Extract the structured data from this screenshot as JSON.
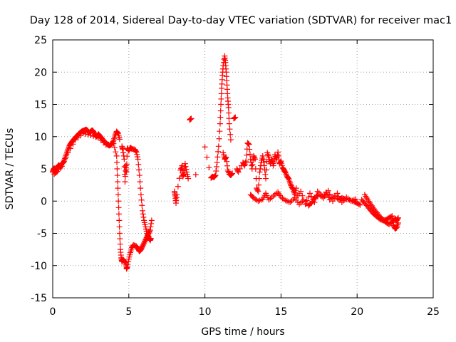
{
  "chart_data": {
    "type": "scatter",
    "title": "Day 128 of 2014, Sidereal Day-to-day VTEC variation (SDTVAR) for receiver mac1",
    "xlabel": "GPS time / hours",
    "ylabel": "SDTVAR / TECUs",
    "xlim": [
      0,
      25
    ],
    "ylim": [
      -15,
      25
    ],
    "xticks": [
      0,
      5,
      10,
      15,
      20,
      25
    ],
    "yticks": [
      -15,
      -10,
      -5,
      0,
      5,
      10,
      15,
      20,
      25
    ],
    "grid": true,
    "marker": "+",
    "color": "#ff0000",
    "series": [
      {
        "name": "SDTVAR",
        "points": [
          [
            0.0,
            4.5
          ],
          [
            0.05,
            4.9
          ],
          [
            0.1,
            5.1
          ],
          [
            0.2,
            4.7
          ],
          [
            0.3,
            5.3
          ],
          [
            0.4,
            5.6
          ],
          [
            0.5,
            5.2
          ],
          [
            0.6,
            5.8
          ],
          [
            0.7,
            6.0
          ],
          [
            0.8,
            6.6
          ],
          [
            0.9,
            7.3
          ],
          [
            1.0,
            8.0
          ],
          [
            1.1,
            8.6
          ],
          [
            1.2,
            9.0
          ],
          [
            1.3,
            9.3
          ],
          [
            1.4,
            9.6
          ],
          [
            1.5,
            9.9
          ],
          [
            1.6,
            10.1
          ],
          [
            1.7,
            10.4
          ],
          [
            1.8,
            10.6
          ],
          [
            1.9,
            10.8
          ],
          [
            2.0,
            10.9
          ],
          [
            2.1,
            11.0
          ],
          [
            2.2,
            11.1
          ],
          [
            2.3,
            10.9
          ],
          [
            2.4,
            10.6
          ],
          [
            2.5,
            10.8
          ],
          [
            2.6,
            11.0
          ],
          [
            2.7,
            10.7
          ],
          [
            2.8,
            10.2
          ],
          [
            2.9,
            10.0
          ],
          [
            3.0,
            10.4
          ],
          [
            3.1,
            10.1
          ],
          [
            3.2,
            9.8
          ],
          [
            3.3,
            9.5
          ],
          [
            3.4,
            9.2
          ],
          [
            3.5,
            9.0
          ],
          [
            3.6,
            8.8
          ],
          [
            3.7,
            8.6
          ],
          [
            3.8,
            8.7
          ],
          [
            3.9,
            8.9
          ],
          [
            4.0,
            9.4
          ],
          [
            4.1,
            10.2
          ],
          [
            4.2,
            10.8
          ],
          [
            4.3,
            10.5
          ],
          [
            4.4,
            9.6
          ],
          [
            0.1,
            4.2
          ],
          [
            0.3,
            4.6
          ],
          [
            0.6,
            5.4
          ],
          [
            1.0,
            7.5
          ],
          [
            1.5,
            9.5
          ],
          [
            2.0,
            10.5
          ],
          [
            2.5,
            10.2
          ],
          [
            3.0,
            9.8
          ],
          [
            3.5,
            8.7
          ],
          [
            4.0,
            8.9
          ],
          [
            4.2,
            7.0
          ],
          [
            4.25,
            4.0
          ],
          [
            4.3,
            1.0
          ],
          [
            4.35,
            -2.0
          ],
          [
            4.4,
            -5.0
          ],
          [
            4.45,
            -7.5
          ],
          [
            4.5,
            -8.8
          ],
          [
            4.55,
            -9.4
          ],
          [
            4.6,
            -9.0
          ],
          [
            4.7,
            -9.3
          ],
          [
            4.8,
            -9.6
          ],
          [
            4.85,
            -10.5
          ],
          [
            4.9,
            -10.2
          ],
          [
            5.0,
            -9.0
          ],
          [
            5.1,
            -8.0
          ],
          [
            5.2,
            -7.2
          ],
          [
            5.3,
            -6.8
          ],
          [
            5.5,
            -7.0
          ],
          [
            5.6,
            -7.4
          ],
          [
            5.7,
            -7.8
          ],
          [
            5.8,
            -7.5
          ],
          [
            5.9,
            -7.0
          ],
          [
            6.0,
            -6.5
          ],
          [
            6.1,
            -6.0
          ],
          [
            6.2,
            -5.5
          ],
          [
            6.3,
            -5.0
          ],
          [
            6.4,
            -4.5
          ],
          [
            6.5,
            -3.0
          ],
          [
            4.55,
            8.5
          ],
          [
            4.6,
            8.0
          ],
          [
            4.7,
            6.5
          ],
          [
            4.75,
            3.0
          ],
          [
            4.8,
            5.5
          ],
          [
            4.85,
            4.5
          ],
          [
            4.9,
            8.2
          ],
          [
            5.0,
            7.8
          ],
          [
            5.1,
            8.3
          ],
          [
            5.2,
            8.1
          ],
          [
            5.4,
            8.0
          ],
          [
            5.5,
            7.6
          ],
          [
            5.6,
            6.5
          ],
          [
            5.7,
            4.0
          ],
          [
            5.8,
            1.0
          ],
          [
            5.9,
            -1.5
          ],
          [
            6.0,
            -3.0
          ],
          [
            6.1,
            -4.0
          ],
          [
            6.2,
            -5.0
          ],
          [
            6.3,
            -5.6
          ],
          [
            6.4,
            -6.1
          ],
          [
            6.45,
            -5.8
          ],
          [
            8.0,
            1.5
          ],
          [
            8.05,
            0.8
          ],
          [
            8.1,
            -0.3
          ],
          [
            8.15,
            1.0
          ],
          [
            8.4,
            4.8
          ],
          [
            8.5,
            5.5
          ],
          [
            8.55,
            3.8
          ],
          [
            8.6,
            4.2
          ],
          [
            8.7,
            5.8
          ],
          [
            8.8,
            4.5
          ],
          [
            8.9,
            3.5
          ],
          [
            9.0,
            12.6
          ],
          [
            9.1,
            12.8
          ],
          [
            9.4,
            4.1
          ],
          [
            10.0,
            8.4
          ],
          [
            10.4,
            3.6
          ],
          [
            10.5,
            3.8
          ],
          [
            10.6,
            3.7
          ],
          [
            10.7,
            4.0
          ],
          [
            10.8,
            6.0
          ],
          [
            10.9,
            8.5
          ],
          [
            11.0,
            12.0
          ],
          [
            11.05,
            15.0
          ],
          [
            11.1,
            17.5
          ],
          [
            11.15,
            19.5
          ],
          [
            11.2,
            21.0
          ],
          [
            11.3,
            22.5
          ],
          [
            11.35,
            21.5
          ],
          [
            11.4,
            20.0
          ],
          [
            11.45,
            18.0
          ],
          [
            11.5,
            16.0
          ],
          [
            11.55,
            14.5
          ],
          [
            11.6,
            12.0
          ],
          [
            11.7,
            9.5
          ],
          [
            11.2,
            7.5
          ],
          [
            11.3,
            6.5
          ],
          [
            11.4,
            6.8
          ],
          [
            11.5,
            4.8
          ],
          [
            11.6,
            4.2
          ],
          [
            11.7,
            4.0
          ],
          [
            11.8,
            4.3
          ],
          [
            11.9,
            12.8
          ],
          [
            12.0,
            13.0
          ],
          [
            12.1,
            5.0
          ],
          [
            12.2,
            4.5
          ],
          [
            12.5,
            6.0
          ],
          [
            12.6,
            5.5
          ],
          [
            12.7,
            6.2
          ],
          [
            12.8,
            9.0
          ],
          [
            12.9,
            8.8
          ],
          [
            13.0,
            6.5
          ],
          [
            13.1,
            5.0
          ],
          [
            13.2,
            7.0
          ],
          [
            13.3,
            6.5
          ],
          [
            13.4,
            2.0
          ],
          [
            13.5,
            1.5
          ],
          [
            13.6,
            4.5
          ],
          [
            13.7,
            6.0
          ],
          [
            13.8,
            7.0
          ],
          [
            13.9,
            5.5
          ],
          [
            14.0,
            3.5
          ],
          [
            14.1,
            7.5
          ],
          [
            14.2,
            6.8
          ],
          [
            14.3,
            5.8
          ],
          [
            14.4,
            6.5
          ],
          [
            14.5,
            5.5
          ],
          [
            14.6,
            7.2
          ],
          [
            14.7,
            6.4
          ],
          [
            14.8,
            7.6
          ],
          [
            14.9,
            5.8
          ],
          [
            15.0,
            6.2
          ],
          [
            15.1,
            5.2
          ],
          [
            15.2,
            4.8
          ],
          [
            15.3,
            4.4
          ],
          [
            15.4,
            3.8
          ],
          [
            15.5,
            3.5
          ],
          [
            15.6,
            2.8
          ],
          [
            15.7,
            2.2
          ],
          [
            15.8,
            1.8
          ],
          [
            15.9,
            1.0
          ],
          [
            16.0,
            2.0
          ],
          [
            13.0,
            1.0
          ],
          [
            13.2,
            0.5
          ],
          [
            13.5,
            0.0
          ],
          [
            13.8,
            0.3
          ],
          [
            14.0,
            1.2
          ],
          [
            14.2,
            0.2
          ],
          [
            14.5,
            0.8
          ],
          [
            14.8,
            1.4
          ],
          [
            15.0,
            0.6
          ],
          [
            15.3,
            0.1
          ],
          [
            15.6,
            -0.2
          ],
          [
            15.9,
            0.5
          ],
          [
            16.2,
            -0.5
          ],
          [
            16.5,
            0.2
          ],
          [
            16.8,
            -0.7
          ],
          [
            17.0,
            -0.3
          ],
          [
            17.2,
            0.5
          ],
          [
            17.5,
            1.0
          ],
          [
            17.8,
            0.5
          ],
          [
            18.0,
            1.3
          ],
          [
            18.2,
            0.2
          ],
          [
            18.5,
            0.8
          ],
          [
            18.8,
            0.2
          ],
          [
            19.0,
            0.5
          ],
          [
            19.2,
            0.3
          ],
          [
            19.5,
            0.2
          ],
          [
            19.8,
            -0.1
          ],
          [
            20.0,
            -0.3
          ],
          [
            20.2,
            -0.6
          ],
          [
            16.0,
            0.5
          ],
          [
            16.3,
            1.5
          ],
          [
            16.6,
            -0.5
          ],
          [
            16.9,
            1.2
          ],
          [
            17.2,
            -0.2
          ],
          [
            17.4,
            1.5
          ],
          [
            17.7,
            0.8
          ],
          [
            18.1,
            1.6
          ],
          [
            18.4,
            0.0
          ],
          [
            18.7,
            1.2
          ],
          [
            19.0,
            -0.2
          ],
          [
            19.3,
            0.6
          ],
          [
            19.6,
            0.0
          ],
          [
            19.9,
            0.3
          ],
          [
            20.5,
            1.0
          ],
          [
            20.7,
            0.2
          ],
          [
            20.9,
            -0.5
          ],
          [
            21.1,
            -1.2
          ],
          [
            21.3,
            -1.8
          ],
          [
            21.5,
            -2.4
          ],
          [
            21.7,
            -2.9
          ],
          [
            21.9,
            -3.3
          ],
          [
            22.1,
            -3.6
          ],
          [
            22.3,
            -3.2
          ],
          [
            22.5,
            -2.7
          ],
          [
            22.6,
            -3.0
          ],
          [
            22.7,
            -2.6
          ],
          [
            20.3,
            0.2
          ],
          [
            20.5,
            -0.3
          ],
          [
            20.7,
            -0.9
          ],
          [
            20.9,
            -1.5
          ],
          [
            21.1,
            -2.0
          ],
          [
            21.3,
            -2.4
          ],
          [
            21.5,
            -2.8
          ],
          [
            21.7,
            -3.0
          ],
          [
            21.9,
            -2.9
          ],
          [
            22.1,
            -2.6
          ],
          [
            22.3,
            -2.3
          ],
          [
            22.4,
            -3.8
          ],
          [
            22.5,
            -4.3
          ],
          [
            22.6,
            -4.1
          ],
          [
            22.7,
            -3.4
          ]
        ]
      }
    ]
  }
}
